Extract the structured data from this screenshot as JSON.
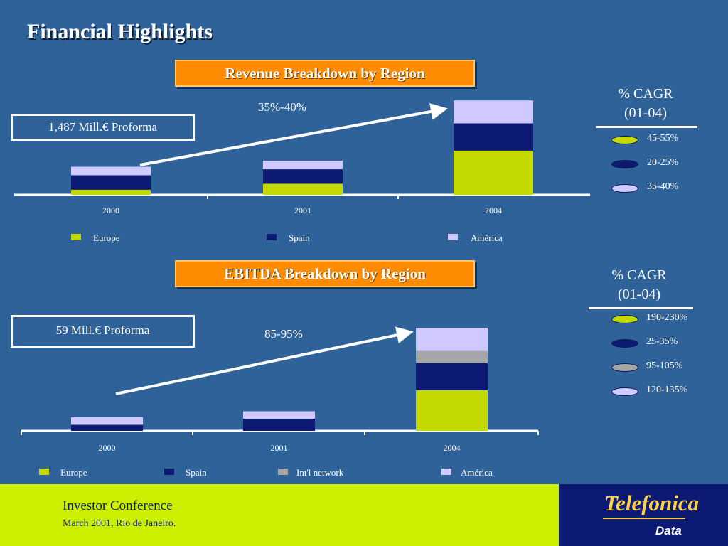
{
  "title": "Financial Highlights",
  "colors": {
    "Europe": "#c3d900",
    "Spain": "#0c1a73",
    "Int'l network": "#a6a6a6",
    "América": "#cfc9ff"
  },
  "revenue": {
    "banner": "Revenue Breakdown by Region",
    "callout": "1,487 Mill.€ Proforma",
    "growth": "35%-40%",
    "cagr_title": [
      "% CAGR",
      "(01-04)"
    ],
    "cagr_items": [
      {
        "color": "#c3d900",
        "label": "45-55%"
      },
      {
        "color": "#0c1a73",
        "label": "20-25%"
      },
      {
        "color": "#cfc9ff",
        "label": "35-40%"
      }
    ]
  },
  "ebitda": {
    "banner": "EBITDA Breakdown by Region",
    "callout": "59  Mill.€ Proforma",
    "growth": "85-95%",
    "cagr_title": [
      "% CAGR",
      "(01-04)"
    ],
    "cagr_items": [
      {
        "color": "#c3d900",
        "label": "190-230%"
      },
      {
        "color": "#0c1a73",
        "label": "25-35%"
      },
      {
        "color": "#a6a6a6",
        "label": "95-105%"
      },
      {
        "color": "#cfc9ff",
        "label": "120-135%"
      }
    ]
  },
  "chart_data": [
    {
      "type": "bar",
      "stacked": true,
      "title": "Revenue Breakdown by Region",
      "categories": [
        "2000",
        "2001",
        "2004"
      ],
      "series": [
        {
          "name": "Europe",
          "values": [
            6,
            13,
            52
          ]
        },
        {
          "name": "Spain",
          "values": [
            17,
            17,
            32
          ]
        },
        {
          "name": "América",
          "values": [
            10,
            10,
            27
          ]
        }
      ],
      "ylim": [
        0,
        112
      ],
      "legend": "bottom"
    },
    {
      "type": "bar",
      "stacked": true,
      "title": "EBITDA Breakdown by Region",
      "categories": [
        "2000",
        "2001",
        "2004"
      ],
      "series": [
        {
          "name": "Europe",
          "values": [
            0,
            0,
            54
          ]
        },
        {
          "name": "Spain",
          "values": [
            8,
            16,
            36
          ]
        },
        {
          "name": "Int'l network",
          "values": [
            0,
            0,
            16
          ]
        },
        {
          "name": "América",
          "values": [
            10,
            10,
            31
          ]
        }
      ],
      "ylim": [
        0,
        138
      ],
      "legend": "bottom"
    }
  ],
  "footer": {
    "conference": "Investor Conference",
    "date": "March 2001, Rio de Janeiro.",
    "logo": "Telefonica",
    "logo_sub": "Data"
  }
}
